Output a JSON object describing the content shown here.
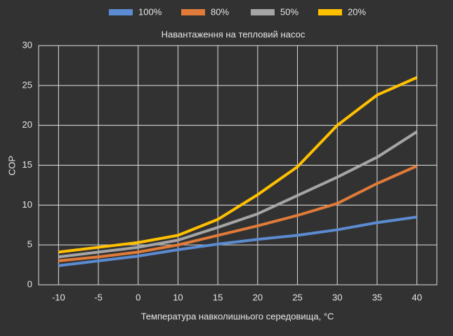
{
  "chart_data": {
    "type": "line",
    "title": "Навантаження на тепловий насос",
    "x_label": "Температура навколишнього середовища, °C",
    "y_label": "COP",
    "categories": [
      "-10",
      "-5",
      "0",
      "10",
      "15",
      "20",
      "25",
      "30",
      "35",
      "40"
    ],
    "series": [
      {
        "name": "100%",
        "color": "#5b8bd0",
        "values": [
          2.4,
          3.0,
          3.6,
          4.4,
          5.1,
          5.7,
          6.2,
          6.9,
          7.8,
          8.5
        ]
      },
      {
        "name": "80%",
        "color": "#e07b39",
        "values": [
          3.0,
          3.5,
          4.1,
          5.0,
          6.2,
          7.4,
          8.7,
          10.2,
          12.7,
          14.9
        ]
      },
      {
        "name": "50%",
        "color": "#a5a5a5",
        "values": [
          3.5,
          4.1,
          4.7,
          5.6,
          7.2,
          8.9,
          11.2,
          13.5,
          16.0,
          19.2
        ]
      },
      {
        "name": "20%",
        "color": "#ffc000",
        "values": [
          4.1,
          4.7,
          5.3,
          6.2,
          8.2,
          11.3,
          14.8,
          20.0,
          23.8,
          26.0
        ]
      }
    ],
    "ylim": [
      0,
      30
    ],
    "yticks": [
      0,
      5,
      10,
      15,
      20,
      25,
      30
    ],
    "grid": true,
    "legend": "top"
  }
}
